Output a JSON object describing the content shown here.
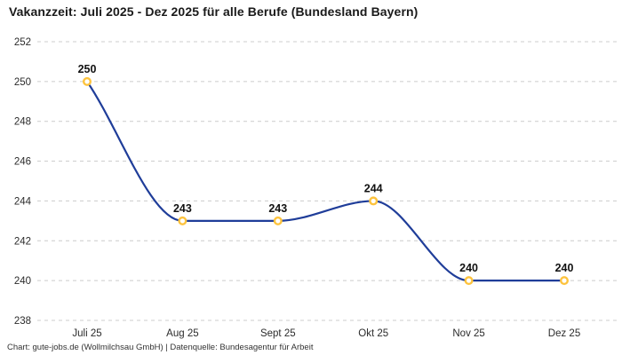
{
  "header": {
    "title": "Vakanzzeit: Juli 2025 - Dez 2025 für alle Berufe (Bundesland Bayern)"
  },
  "footer": {
    "credit": "Chart: gute-jobs.de (Wollmilchsau GmbH) | Datenquelle: Bundesagentur für Arbeit"
  },
  "chart_data": {
    "type": "line",
    "title": "Vakanzzeit: Juli 2025 - Dez 2025 für alle Berufe (Bundesland Bayern)",
    "categories": [
      "Juli 25",
      "Aug 25",
      "Sept 25",
      "Okt 25",
      "Nov 25",
      "Dez 25"
    ],
    "values": [
      250,
      243,
      243,
      244,
      240,
      240
    ],
    "data_labels": [
      "250",
      "243",
      "243",
      "244",
      "240",
      "240"
    ],
    "xlabel": "",
    "ylabel": "",
    "ylim": [
      238,
      252
    ],
    "yticks": [
      238,
      240,
      242,
      244,
      246,
      248,
      250,
      252
    ],
    "grid": "horizontal-dashed",
    "legend_position": "none",
    "line_style": "smooth-monotone",
    "colors": {
      "line": "#1f3d99",
      "marker_ring": "#fdc33d",
      "marker_fill": "#ffffff",
      "gridline": "#cccccc",
      "point_label": "#111111",
      "axis_text": "#2b2b2b",
      "title_text": "#1a1a1a",
      "background": "#ffffff"
    }
  }
}
